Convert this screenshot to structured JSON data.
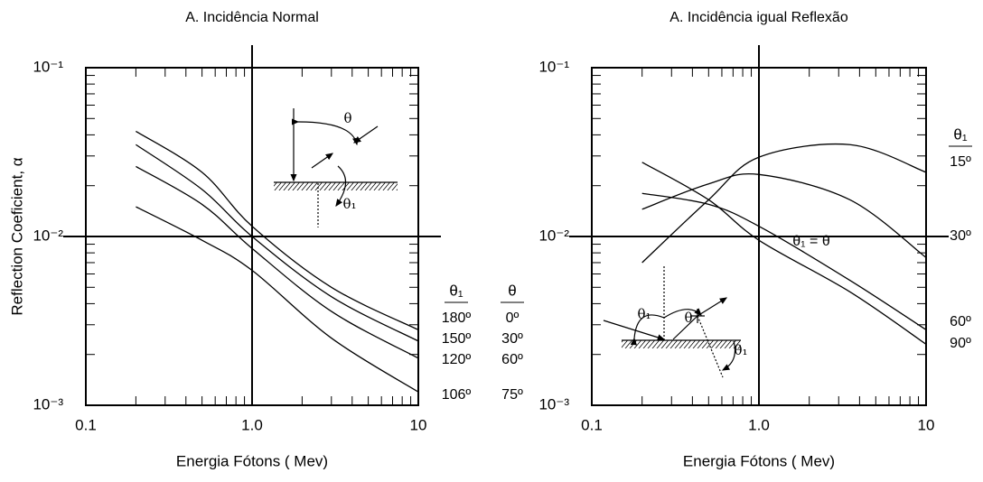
{
  "chart_data": [
    {
      "type": "line",
      "title": "A. Incidência Normal",
      "x_label": "Energia Fótons ( Mev)",
      "y_label": "Reflection Coeficient, α",
      "xscale": "log",
      "yscale": "log",
      "grid": true,
      "xlim": [
        0.1,
        10
      ],
      "ylim": [
        0.001,
        0.1
      ],
      "xticks": [
        0.1,
        {
          "value": 1,
          "label": "1.0"
        },
        10
      ],
      "yticks": [
        {
          "value": 0.1,
          "label": "10⁻¹"
        },
        {
          "value": 0.01,
          "label": "10⁻²"
        },
        {
          "value": 0.001,
          "label": "10⁻³"
        }
      ],
      "xminor": [
        0.2,
        0.3,
        0.4,
        0.5,
        0.6,
        0.7,
        0.8,
        0.9,
        2,
        3,
        4,
        5,
        6,
        7,
        8,
        9
      ],
      "yminor": [
        0.002,
        0.003,
        0.004,
        0.005,
        0.006,
        0.007,
        0.008,
        0.009,
        0.02,
        0.03,
        0.04,
        0.05,
        0.06,
        0.07,
        0.08,
        0.09
      ],
      "legend_headers": [
        "θ₁",
        "θ"
      ],
      "diagram_labels": [
        "θ",
        "θ₁"
      ],
      "x": [
        0.2,
        0.5,
        1,
        3,
        10
      ],
      "series": [
        {
          "name": "180º",
          "theta": "0º",
          "color": "#000000",
          "values": [
            0.042,
            0.024,
            0.0115,
            0.005,
            0.0028
          ]
        },
        {
          "name": "150º",
          "theta": "30º",
          "color": "#000000",
          "values": [
            0.035,
            0.019,
            0.01,
            0.0044,
            0.0024
          ]
        },
        {
          "name": "120º",
          "theta": "60º",
          "color": "#000000",
          "values": [
            0.026,
            0.0155,
            0.0085,
            0.0036,
            0.0019
          ]
        },
        {
          "name": "106º",
          "theta": "75º",
          "color": "#000000",
          "values": [
            0.015,
            0.0095,
            0.0063,
            0.0025,
            0.0012
          ]
        }
      ]
    },
    {
      "type": "line",
      "title": "A. Incidência igual Reflexão",
      "x_label": "Energia Fótons ( Mev)",
      "xscale": "log",
      "yscale": "log",
      "grid": true,
      "xlim": [
        0.1,
        10
      ],
      "ylim": [
        0.001,
        0.1
      ],
      "xticks": [
        0.1,
        {
          "value": 1,
          "label": "1.0"
        },
        10
      ],
      "yticks": [
        {
          "value": 0.1,
          "label": "10⁻¹"
        },
        {
          "value": 0.01,
          "label": "10⁻²"
        },
        {
          "value": 0.001,
          "label": "10⁻³"
        }
      ],
      "xminor": [
        0.2,
        0.3,
        0.4,
        0.5,
        0.6,
        0.7,
        0.8,
        0.9,
        2,
        3,
        4,
        5,
        6,
        7,
        8,
        9
      ],
      "yminor": [
        0.002,
        0.003,
        0.004,
        0.005,
        0.006,
        0.007,
        0.008,
        0.009,
        0.02,
        0.03,
        0.04,
        0.05,
        0.06,
        0.07,
        0.08,
        0.09
      ],
      "legend_headers": [
        "θ₁"
      ],
      "annotation": "θ₁ = θ",
      "diagram_labels": [
        "θ₁",
        "θ",
        "θ₁"
      ],
      "x": [
        0.2,
        0.5,
        1,
        3.5,
        10
      ],
      "series": [
        {
          "name": "15º",
          "color": "#000000",
          "values": [
            0.007,
            0.0165,
            0.0295,
            0.035,
            0.024
          ]
        },
        {
          "name": "30º",
          "color": "#000000",
          "values": [
            0.0145,
            0.0205,
            0.0233,
            0.0165,
            0.0075
          ]
        },
        {
          "name": "60º",
          "color": "#000000",
          "values": [
            0.018,
            0.0155,
            0.0115,
            0.0055,
            0.0028
          ]
        },
        {
          "name": "90º",
          "color": "#000000",
          "values": [
            0.0275,
            0.0165,
            0.0095,
            0.0047,
            0.0023
          ]
        }
      ]
    }
  ]
}
